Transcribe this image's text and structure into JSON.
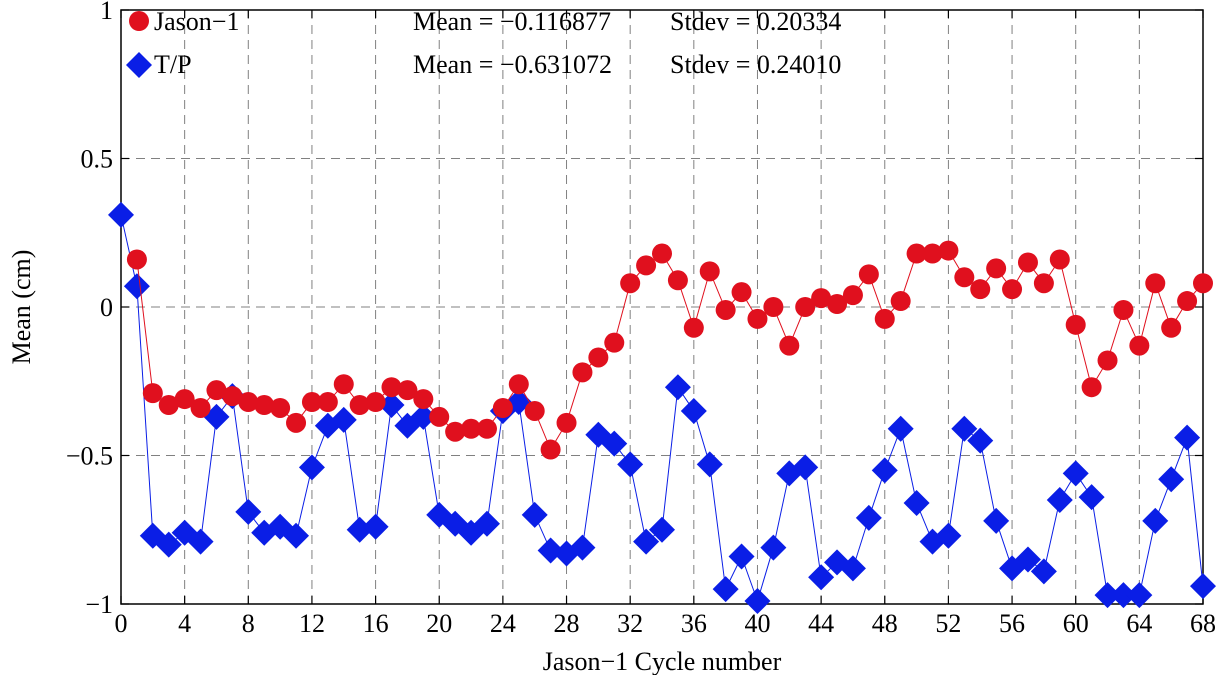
{
  "chart_data": {
    "type": "line",
    "xlabel": "Jason−1 Cycle number",
    "ylabel": "Mean (cm)",
    "xlim": [
      0,
      68
    ],
    "ylim": [
      -1,
      1
    ],
    "xticks": [
      0,
      4,
      8,
      12,
      16,
      20,
      24,
      28,
      32,
      36,
      40,
      44,
      48,
      52,
      56,
      60,
      64,
      68
    ],
    "xtick_labels": [
      "0",
      "4",
      "8",
      "12",
      "16",
      "20",
      "24",
      "28",
      "32",
      "36",
      "40",
      "44",
      "48",
      "52",
      "56",
      "60",
      "64",
      "68"
    ],
    "yticks": [
      -1,
      -0.5,
      0,
      0.5,
      1
    ],
    "ytick_labels": [
      "−1",
      "−0.5",
      "0",
      "0.5",
      "1"
    ],
    "grid": true,
    "legend_position": "top-left",
    "series": [
      {
        "name": "Jason−1",
        "color": "#e0101e",
        "marker": "circle",
        "mean_text": "Mean = −0.116877",
        "stdev_text": "Stdev = 0.20334",
        "x": [
          1,
          2,
          3,
          4,
          5,
          6,
          7,
          8,
          9,
          10,
          11,
          12,
          13,
          14,
          15,
          16,
          17,
          18,
          19,
          20,
          21,
          22,
          23,
          24,
          25,
          26,
          27,
          28,
          29,
          30,
          31,
          32,
          33,
          34,
          35,
          36,
          37,
          38,
          39,
          40,
          41,
          42,
          43,
          44,
          45,
          46,
          47,
          48,
          49,
          50,
          51,
          52,
          53,
          54,
          55,
          56,
          57,
          58,
          59,
          60,
          61,
          62,
          63,
          64,
          65,
          66,
          67,
          68
        ],
        "values": [
          0.16,
          -0.29,
          -0.33,
          -0.31,
          -0.34,
          -0.28,
          -0.3,
          -0.32,
          -0.33,
          -0.34,
          -0.39,
          -0.32,
          -0.32,
          -0.26,
          -0.33,
          -0.32,
          -0.27,
          -0.28,
          -0.31,
          -0.37,
          -0.42,
          -0.41,
          -0.41,
          -0.34,
          -0.26,
          -0.35,
          -0.48,
          -0.39,
          -0.22,
          -0.17,
          -0.12,
          0.08,
          0.14,
          0.18,
          0.09,
          -0.07,
          0.12,
          -0.01,
          0.05,
          -0.04,
          0.0,
          -0.13,
          0.0,
          0.03,
          0.01,
          0.04,
          0.11,
          -0.04,
          0.02,
          0.18,
          0.18,
          0.19,
          0.1,
          0.06,
          0.13,
          0.06,
          0.15,
          0.08,
          0.16,
          -0.06,
          -0.27,
          -0.18,
          -0.01,
          -0.13,
          0.08,
          -0.07,
          0.02,
          0.08
        ]
      },
      {
        "name": "T/P",
        "color": "#0a1ee6",
        "marker": "diamond",
        "mean_text": "Mean = −0.631072",
        "stdev_text": "Stdev = 0.24010",
        "x": [
          0,
          1,
          2,
          3,
          4,
          5,
          6,
          7,
          8,
          9,
          10,
          11,
          12,
          13,
          14,
          15,
          16,
          17,
          18,
          19,
          20,
          21,
          22,
          23,
          24,
          25,
          26,
          27,
          28,
          29,
          30,
          31,
          32,
          33,
          34,
          35,
          36,
          37,
          38,
          39,
          40,
          41,
          42,
          43,
          44,
          45,
          46,
          47,
          48,
          49,
          50,
          51,
          52,
          53,
          54,
          55,
          56,
          57,
          58,
          59,
          60,
          61,
          62,
          63,
          64,
          65,
          66,
          67,
          68
        ],
        "values": [
          0.31,
          0.07,
          -0.77,
          -0.8,
          -0.76,
          -0.79,
          -0.37,
          -0.3,
          -0.69,
          -0.76,
          -0.74,
          -0.77,
          -0.54,
          -0.4,
          -0.38,
          -0.75,
          -0.74,
          -0.33,
          -0.4,
          -0.37,
          -0.7,
          -0.73,
          -0.76,
          -0.73,
          -0.35,
          -0.32,
          -0.7,
          -0.82,
          -0.83,
          -0.81,
          -0.43,
          -0.46,
          -0.53,
          -0.79,
          -0.75,
          -0.27,
          -0.35,
          -0.53,
          -0.95,
          -0.84,
          -0.99,
          -0.81,
          -0.56,
          -0.54,
          -0.91,
          -0.86,
          -0.88,
          -0.71,
          -0.55,
          -0.41,
          -0.66,
          -0.79,
          -0.77,
          -0.41,
          -0.45,
          -0.72,
          -0.88,
          -0.85,
          -0.89,
          -0.65,
          -0.56,
          -0.64,
          -0.97,
          -0.97,
          -0.97,
          -0.72,
          -0.58,
          -0.44,
          -0.94
        ]
      }
    ]
  }
}
